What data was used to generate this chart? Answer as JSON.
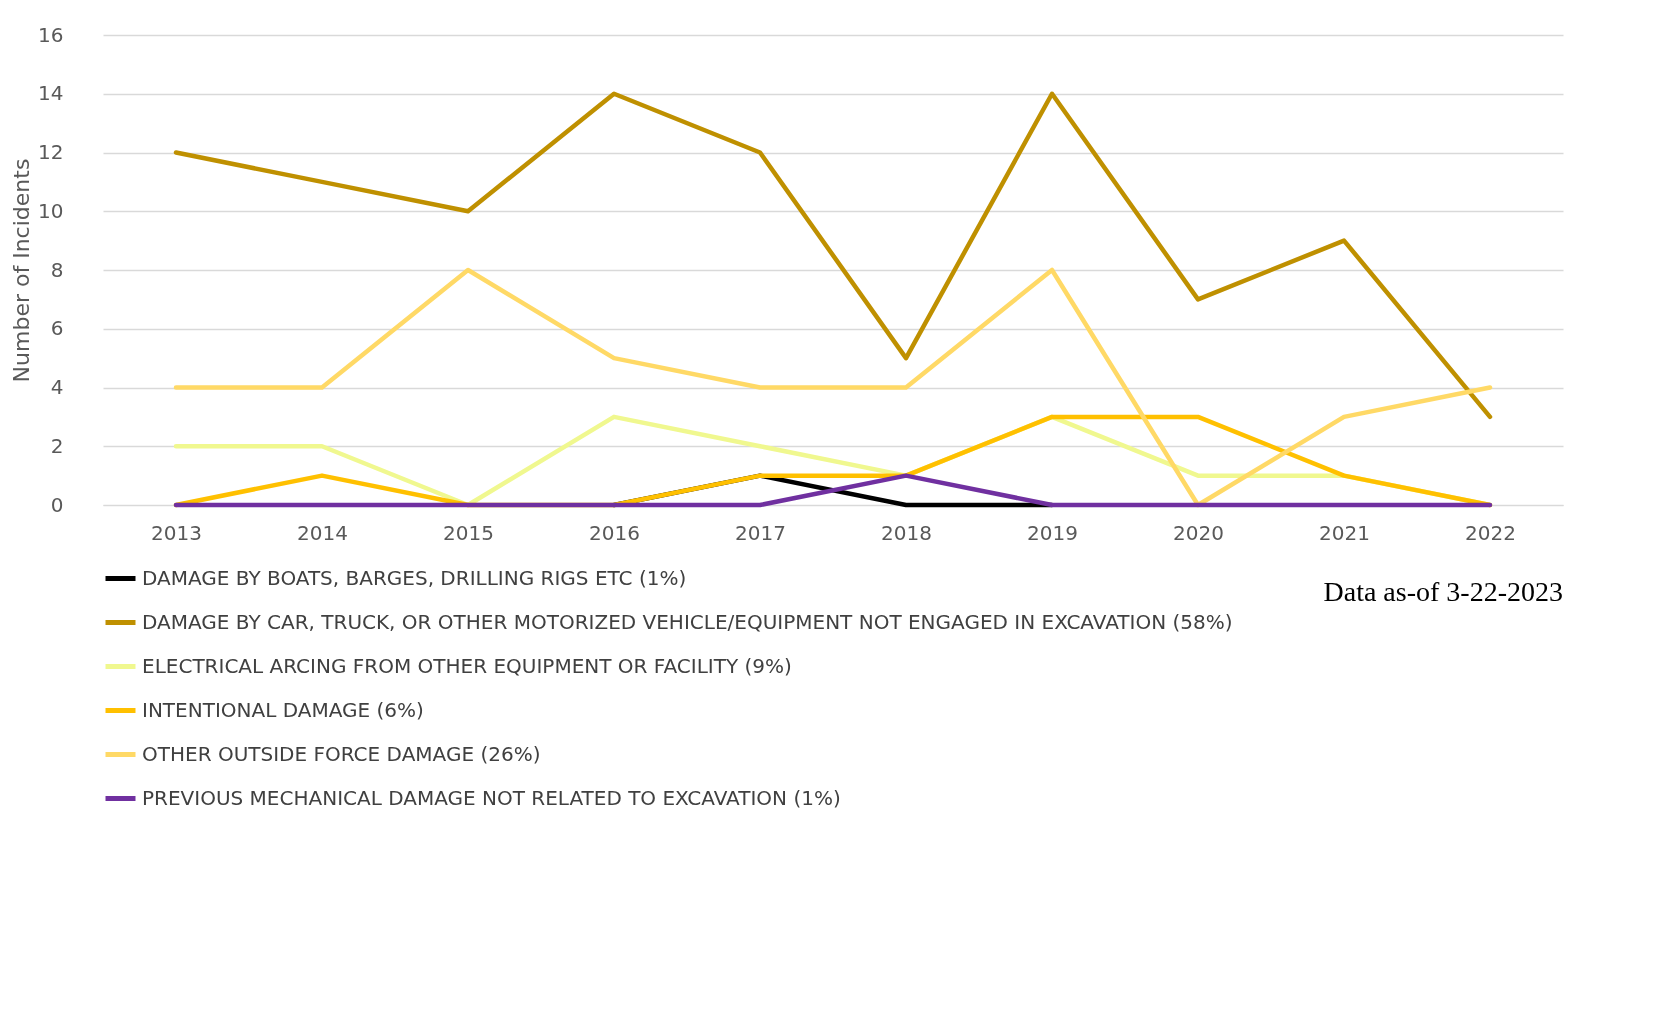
{
  "chart_data": {
    "type": "line",
    "ylabel": "Number of Incidents",
    "categories": [
      "2013",
      "2014",
      "2015",
      "2016",
      "2017",
      "2018",
      "2019",
      "2020",
      "2021",
      "2022"
    ],
    "series": [
      {
        "name": "DAMAGE BY BOATS, BARGES, DRILLING RIGS ETC (1%)",
        "color": "#000000",
        "values": [
          null,
          null,
          null,
          0,
          1,
          0,
          0,
          null,
          null,
          null
        ]
      },
      {
        "name": "DAMAGE BY CAR, TRUCK, OR OTHER MOTORIZED VEHICLE/EQUIPMENT NOT ENGAGED IN EXCAVATION (58%)",
        "color": "#bf9000",
        "values": [
          12,
          11,
          10,
          14,
          12,
          5,
          14,
          7,
          9,
          3
        ]
      },
      {
        "name": "ELECTRICAL ARCING FROM OTHER EQUIPMENT OR FACILITY (9%)",
        "color": "#f0f88f",
        "values": [
          2,
          2,
          0,
          3,
          2,
          1,
          3,
          1,
          1,
          0
        ]
      },
      {
        "name": "INTENTIONAL DAMAGE (6%)",
        "color": "#ffc000",
        "values": [
          0,
          1,
          0,
          0,
          1,
          1,
          3,
          3,
          1,
          0
        ]
      },
      {
        "name": "OTHER OUTSIDE FORCE DAMAGE (26%)",
        "color": "#ffd966",
        "values": [
          4,
          4,
          8,
          5,
          4,
          4,
          8,
          0,
          3,
          4
        ]
      },
      {
        "name": "PREVIOUS MECHANICAL DAMAGE NOT RELATED TO EXCAVATION (1%)",
        "color": "#7030a0",
        "values": [
          0,
          0,
          0,
          0,
          0,
          1,
          0,
          0,
          0,
          0
        ]
      }
    ],
    "ylim": [
      0,
      16
    ],
    "yticks": [
      0,
      2,
      4,
      6,
      8,
      10,
      12,
      14,
      16
    ],
    "grid": "y",
    "legend": "bottom",
    "marker": "none",
    "line_style": "solid",
    "annotations": [
      "Data as-of 3-22-2023"
    ]
  }
}
